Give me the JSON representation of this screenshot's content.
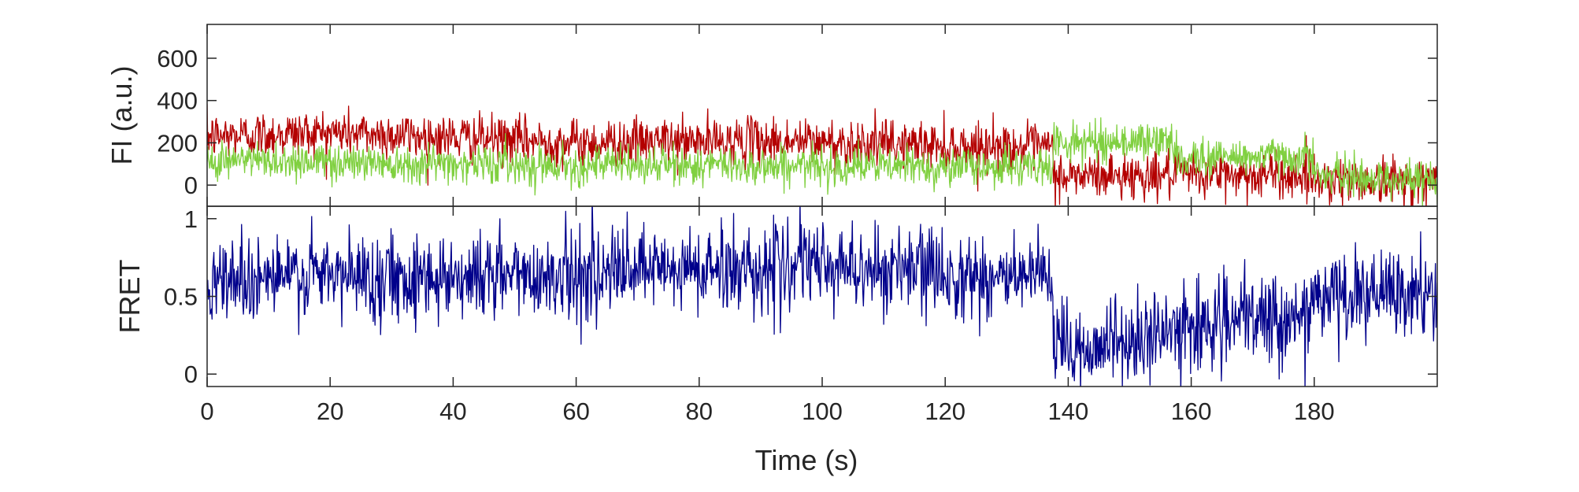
{
  "chart_data": [
    {
      "type": "line",
      "ylabel": "FI (a.u.)",
      "xlabel": "",
      "xlim": [
        0,
        200
      ],
      "ylim": [
        -100,
        760
      ],
      "x_ticks": [
        "0",
        "20",
        "40",
        "60",
        "80",
        "100",
        "120",
        "140",
        "160",
        "180"
      ],
      "y_ticks": [
        {
          "value": 0,
          "label": "0"
        },
        {
          "value": 200,
          "label": "200"
        },
        {
          "value": 400,
          "label": "400"
        },
        {
          "value": 600,
          "label": "600"
        }
      ],
      "grid": false,
      "sample_interval_s": 0.1,
      "series": [
        {
          "color": "#b40000",
          "noise": 55,
          "segments": [
            {
              "t0": 0,
              "v0": 230,
              "t1": 20,
              "v1": 250
            },
            {
              "t0": 20,
              "v0": 250,
              "t1": 60,
              "v1": 200
            },
            {
              "t0": 60,
              "v0": 200,
              "t1": 90,
              "v1": 210
            },
            {
              "t0": 90,
              "v0": 210,
              "t1": 137.5,
              "v1": 175
            },
            {
              "t0": 137.5,
              "v0": 40,
              "t1": 160,
              "v1": 50
            },
            {
              "t0": 160,
              "v0": 50,
              "t1": 180,
              "v1": 45
            },
            {
              "t0": 180,
              "v0": 30,
              "t1": 200,
              "v1": 15
            }
          ]
        },
        {
          "color": "#80d040",
          "noise": 45,
          "segments": [
            {
              "t0": 0,
              "v0": 120,
              "t1": 60,
              "v1": 95
            },
            {
              "t0": 60,
              "v0": 95,
              "t1": 137.5,
              "v1": 85
            },
            {
              "t0": 137.5,
              "v0": 200,
              "t1": 157,
              "v1": 210
            },
            {
              "t0": 157,
              "v0": 130,
              "t1": 180,
              "v1": 140
            },
            {
              "t0": 180,
              "v0": 45,
              "t1": 200,
              "v1": 20
            }
          ]
        }
      ]
    },
    {
      "type": "line",
      "ylabel": "FRET",
      "xlabel": "Time (s)",
      "xlim": [
        0,
        200
      ],
      "ylim": [
        -0.08,
        1.08
      ],
      "x_ticks": [
        "0",
        "20",
        "40",
        "60",
        "80",
        "100",
        "120",
        "140",
        "160",
        "180"
      ],
      "y_ticks": [
        {
          "value": 0,
          "label": "0"
        },
        {
          "value": 0.5,
          "label": "0.5"
        },
        {
          "value": 1,
          "label": "1"
        }
      ],
      "grid": false,
      "sample_interval_s": 0.1,
      "series": [
        {
          "color": "#00008b",
          "noise": 0.14,
          "segments": [
            {
              "t0": 0,
              "v0": 0.62,
              "t1": 60,
              "v1": 0.64
            },
            {
              "t0": 60,
              "v0": 0.64,
              "t1": 100,
              "v1": 0.7
            },
            {
              "t0": 100,
              "v0": 0.7,
              "t1": 137.5,
              "v1": 0.6
            },
            {
              "t0": 137.5,
              "v0": 0.15,
              "t1": 157,
              "v1": 0.25
            },
            {
              "t0": 157,
              "v0": 0.3,
              "t1": 180,
              "v1": 0.38
            },
            {
              "t0": 180,
              "v0": 0.5,
              "t1": 200,
              "v1": 0.5
            }
          ]
        }
      ]
    }
  ]
}
